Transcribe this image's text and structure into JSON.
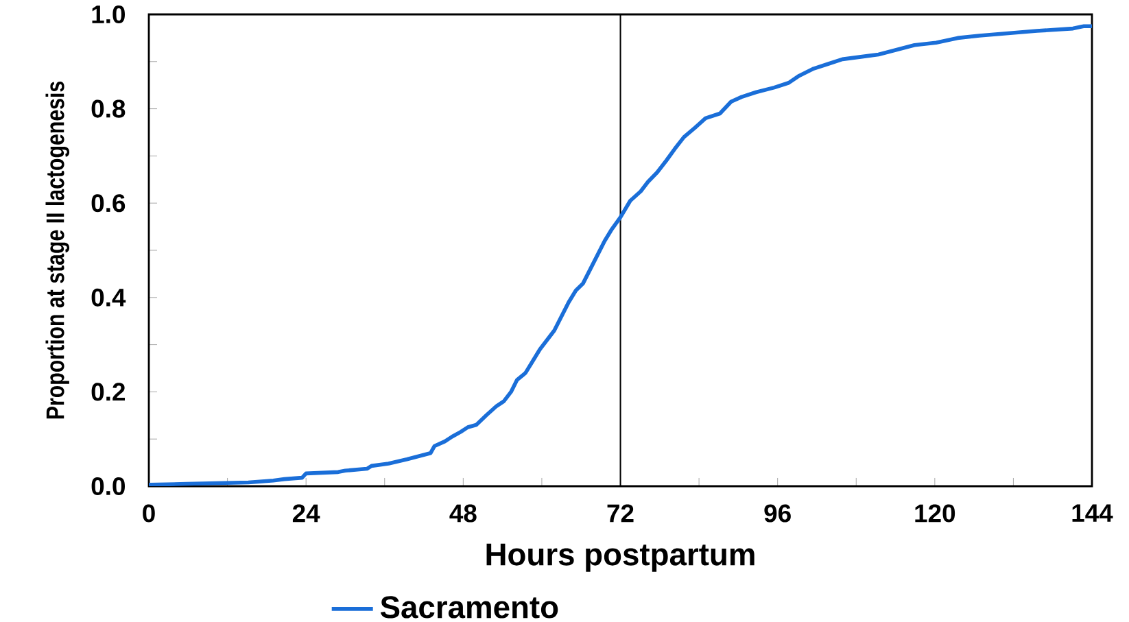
{
  "chart_data": {
    "type": "line",
    "xlabel": "Hours postpartum",
    "ylabel": "Proportion at stage II lactogenesis",
    "xlim": [
      0,
      144
    ],
    "ylim": [
      0,
      1.0
    ],
    "xticks": [
      0,
      {
        "value": 12,
        "label": null
      },
      24,
      {
        "value": 36,
        "label": null
      },
      48,
      {
        "value": 60,
        "label": null
      },
      72,
      {
        "value": 84,
        "label": null
      },
      96,
      {
        "value": 108,
        "label": null
      },
      120,
      {
        "value": 132,
        "label": null
      },
      144
    ],
    "yticks": [
      {
        "value": 0,
        "label": "0.0"
      },
      {
        "value": 0.1,
        "label": null
      },
      {
        "value": 0.2,
        "label": "0.2"
      },
      {
        "value": 0.3,
        "label": null
      },
      {
        "value": 0.4,
        "label": "0.4"
      },
      {
        "value": 0.5,
        "label": null
      },
      {
        "value": 0.6,
        "label": "0.6"
      },
      {
        "value": 0.7,
        "label": null
      },
      {
        "value": 0.8,
        "label": "0.8"
      },
      {
        "value": 0.9,
        "label": null
      },
      {
        "value": 1.0,
        "label": "1.0"
      }
    ],
    "grid": false,
    "legend": "bottom",
    "marker": "none",
    "line_style": "solid",
    "ref_lines": [
      {
        "axis": "x",
        "value": 72,
        "color": "#000000"
      }
    ],
    "series": [
      {
        "name": "Sacramento",
        "color": "#1a6ed8",
        "x": [
          0,
          5.8,
          15.2,
          19,
          20.7,
          23.4,
          24,
          28.9,
          30,
          33.3,
          34,
          36.6,
          39.4,
          41.6,
          43,
          43.6,
          45.2,
          46.3,
          47.6,
          48.7,
          50,
          51.5,
          53.1,
          54.2,
          55.3,
          56.2,
          57.5,
          58.6,
          59.7,
          60.8,
          61.9,
          63,
          64.1,
          65.2,
          66.3,
          67.4,
          68.5,
          69.6,
          70.7,
          72,
          73.5,
          75.1,
          76.2,
          77.6,
          79,
          80.3,
          81.7,
          83.4,
          85,
          87.2,
          88.9,
          90.5,
          92.7,
          95.5,
          97.7,
          99.3,
          101.5,
          103.7,
          105.9,
          108.7,
          111.4,
          114.2,
          116.9,
          120.2,
          123.5,
          126.8,
          131.2,
          135.6,
          141.1,
          142.7,
          144
        ],
        "values": [
          0.003,
          0.005,
          0.008,
          0.012,
          0.015,
          0.018,
          0.027,
          0.03,
          0.033,
          0.037,
          0.043,
          0.048,
          0.057,
          0.065,
          0.07,
          0.085,
          0.095,
          0.105,
          0.115,
          0.125,
          0.13,
          0.15,
          0.17,
          0.18,
          0.2,
          0.225,
          0.24,
          0.265,
          0.29,
          0.31,
          0.33,
          0.36,
          0.39,
          0.415,
          0.43,
          0.46,
          0.49,
          0.52,
          0.545,
          0.57,
          0.605,
          0.625,
          0.645,
          0.665,
          0.69,
          0.715,
          0.74,
          0.76,
          0.78,
          0.79,
          0.815,
          0.825,
          0.835,
          0.845,
          0.855,
          0.87,
          0.885,
          0.895,
          0.905,
          0.91,
          0.915,
          0.925,
          0.935,
          0.94,
          0.95,
          0.955,
          0.96,
          0.965,
          0.97,
          0.975,
          0.975
        ]
      }
    ]
  }
}
